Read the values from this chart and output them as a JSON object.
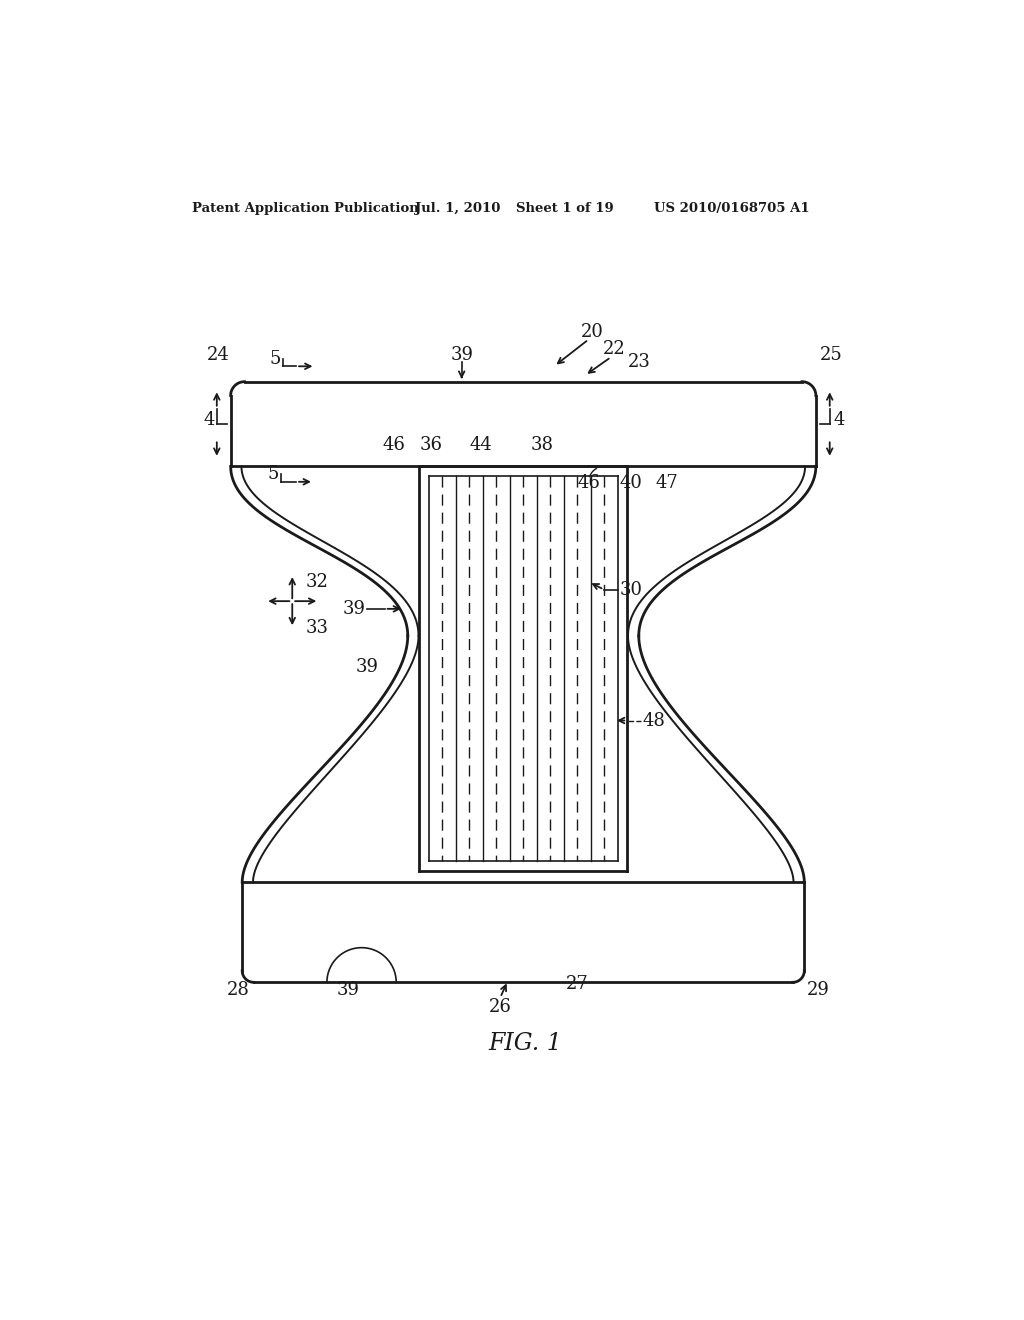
{
  "bg_color": "#ffffff",
  "line_color": "#1a1a1a",
  "header_text": "Patent Application Publication",
  "header_date": "Jul. 1, 2010",
  "header_sheet": "Sheet 1 of 19",
  "header_patent": "US 2010/0168705 A1",
  "fig_label": "FIG. 1",
  "fig_label_prefix": "FIG.",
  "fig_label_num": "1"
}
